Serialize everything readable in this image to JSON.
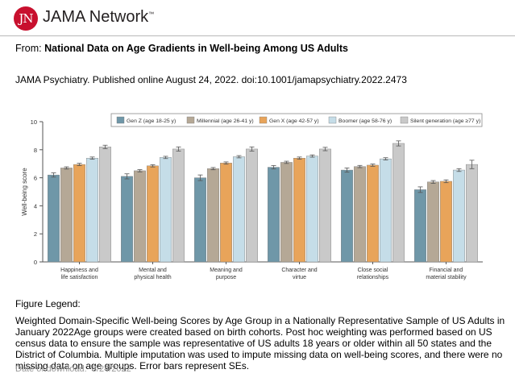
{
  "header": {
    "logo_mark": "JN",
    "logo_text": "JAMA Network",
    "logo_tm": "™"
  },
  "from_prefix": "From:",
  "article_title": "National Data on Age Gradients in Well-being Among US Adults",
  "citation": "JAMA Psychiatry. Published online  August 24, 2022. doi:10.1001/jamapsychiatry.2022.2473",
  "legend_title": "Figure Legend:",
  "legend_body": "Weighted Domain-Specific Well-being Scores by Age Group in a Nationally Representative Sample of US Adults in January 2022Age groups were created based on birth cohorts. Post hoc weighting was performed based on US census data to ensure the sample was representative of US adults 18 years or older within all 50 states and the District of Columbia. Multiple imputation was used to impute missing data on well-being scores, and there were no missing data on age groups. Error bars represent SEs.",
  "download_label": "Date of download:",
  "download_date": "8/24/2022",
  "chart_data": {
    "type": "bar",
    "ylabel": "Well-being score",
    "ylim": [
      0,
      10
    ],
    "yticks": [
      0,
      2,
      4,
      6,
      8,
      10
    ],
    "grid": false,
    "legend_position": "top",
    "categories": [
      [
        "Happiness and",
        "life satisfaction"
      ],
      [
        "Mental and",
        "physical health"
      ],
      [
        "Meaning and",
        "purpose"
      ],
      [
        "Character and",
        "virtue"
      ],
      [
        "Close social",
        "relationships"
      ],
      [
        "Financial and",
        "material stability"
      ]
    ],
    "series": [
      {
        "name": "Gen Z (age 18-25 y)",
        "color": "#6f97a8",
        "values": [
          6.2,
          6.1,
          6.0,
          6.75,
          6.55,
          5.15
        ],
        "errors": [
          0.15,
          0.18,
          0.2,
          0.12,
          0.15,
          0.2
        ]
      },
      {
        "name": "Millennial (age 26-41 y)",
        "color": "#b5a896",
        "values": [
          6.7,
          6.5,
          6.65,
          7.1,
          6.8,
          5.7
        ],
        "errors": [
          0.08,
          0.08,
          0.08,
          0.08,
          0.08,
          0.1
        ]
      },
      {
        "name": "Gen X (age 42-57 y)",
        "color": "#e8a45a",
        "values": [
          6.95,
          6.85,
          7.05,
          7.4,
          6.9,
          5.75
        ],
        "errors": [
          0.08,
          0.08,
          0.08,
          0.08,
          0.08,
          0.1
        ]
      },
      {
        "name": "Boomer (age 58-76 y)",
        "color": "#c5dde8",
        "values": [
          7.4,
          7.45,
          7.5,
          7.55,
          7.35,
          6.55
        ],
        "errors": [
          0.08,
          0.08,
          0.08,
          0.08,
          0.08,
          0.1
        ]
      },
      {
        "name": "Silent generation (age ≥77 y)",
        "color": "#c9c9c9",
        "values": [
          8.2,
          8.05,
          8.05,
          8.05,
          8.45,
          6.95
        ],
        "errors": [
          0.12,
          0.15,
          0.15,
          0.12,
          0.18,
          0.3
        ]
      }
    ]
  }
}
